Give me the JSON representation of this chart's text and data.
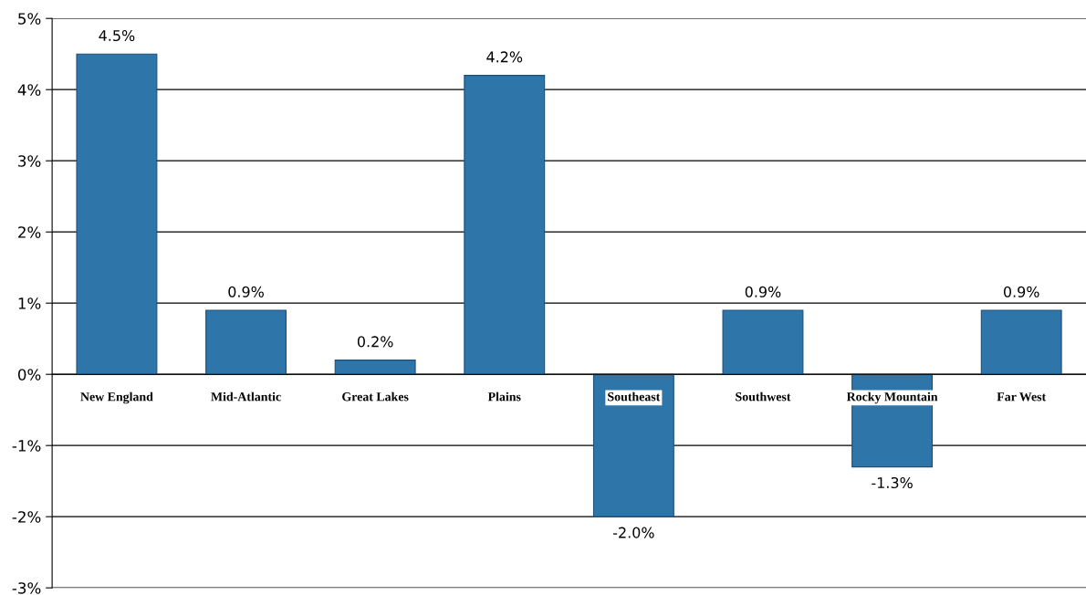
{
  "chart_data": {
    "type": "bar",
    "categories": [
      "New England",
      "Mid-Atlantic",
      "Great Lakes",
      "Plains",
      "Southeast",
      "Southwest",
      "Rocky Mountain",
      "Far West"
    ],
    "values": [
      4.5,
      0.9,
      0.2,
      4.2,
      -2.0,
      0.9,
      -1.3,
      0.9
    ],
    "value_labels": [
      "4.5%",
      "0.9%",
      "0.2%",
      "4.2%",
      "-2.0%",
      "0.9%",
      "-1.3%",
      "0.9%"
    ],
    "color": "#2e75aa",
    "ylim": [
      -3,
      5
    ],
    "yticks": [
      {
        "value": -3,
        "label": "-3%"
      },
      {
        "value": -2,
        "label": "-2%"
      },
      {
        "value": -1,
        "label": "-1%"
      },
      {
        "value": 0,
        "label": "0%"
      },
      {
        "value": 1,
        "label": "1%"
      },
      {
        "value": 2,
        "label": "2%"
      },
      {
        "value": 3,
        "label": "3%"
      },
      {
        "value": 4,
        "label": "4%"
      },
      {
        "value": 5,
        "label": "5%"
      }
    ],
    "grid": "y"
  }
}
